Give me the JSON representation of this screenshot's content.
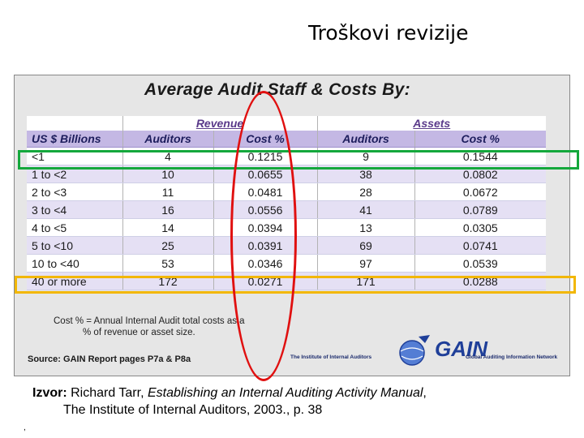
{
  "slide": {
    "title": "Troškovi revizije"
  },
  "figure": {
    "heading": "Average Audit Staff & Costs By:",
    "group_headers": {
      "revenue": "Revenue",
      "assets": "Assets"
    },
    "columns": [
      "US $ Billions",
      "Auditors",
      "Cost %",
      "Auditors",
      "Cost %"
    ],
    "rows": [
      [
        "<1",
        "4",
        "0.1215",
        "9",
        "0.1544"
      ],
      [
        "1 to <2",
        "10",
        "0.0655",
        "38",
        "0.0802"
      ],
      [
        "2 to <3",
        "11",
        "0.0481",
        "28",
        "0.0672"
      ],
      [
        "3 to <4",
        "16",
        "0.0556",
        "41",
        "0.0789"
      ],
      [
        "4 to <5",
        "14",
        "0.0394",
        "13",
        "0.0305"
      ],
      [
        "5 to <10",
        "25",
        "0.0391",
        "69",
        "0.0741"
      ],
      [
        "10 to <40",
        "53",
        "0.0346",
        "97",
        "0.0539"
      ],
      [
        "40 or more",
        "172",
        "0.0271",
        "171",
        "0.0288"
      ]
    ],
    "note_line1": "Cost % = Annual Internal Audit total costs as a",
    "note_line2": "% of revenue or asset size.",
    "source": "Source: GAIN Report pages P7a & P8a",
    "logos": {
      "iia": "The Institute of Internal Auditors",
      "gain": "GAIN",
      "gain_full": "Global Auditing Information Network"
    }
  },
  "annotations": {
    "green_rect_color": "#14a83c",
    "yellow_rect_color": "#f2b705",
    "red_ellipse_color": "#e01010"
  },
  "caption": {
    "lead": "Izvor:",
    "author": " Richard Tarr, ",
    "book": "Establishing an Internal Auditing Activity Manual",
    "comma": ",",
    "line2": "The Institute of Internal Auditors, 2003., p. 38"
  },
  "footer": {
    "mark": ","
  }
}
